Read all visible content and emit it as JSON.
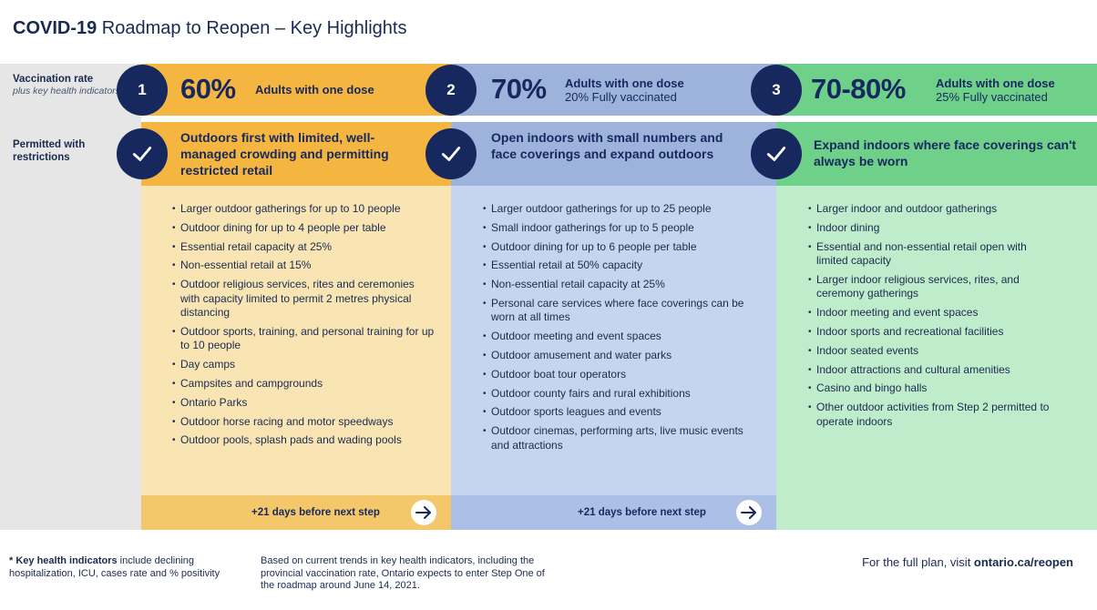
{
  "title": {
    "bold": "COVID-19",
    "rest": " Roadmap to Reopen – Key Highlights"
  },
  "rows": {
    "vaccination": {
      "label": "Vaccination rate",
      "sub": "plus key health indicators*"
    },
    "permitted": {
      "label": "Permitted with restrictions"
    }
  },
  "steps": [
    {
      "number": "1",
      "percent": "60%",
      "dose_line1": "Adults with one dose",
      "dose_line2": "",
      "heading": "Outdoors first with limited, well-managed crowding and permitting restricted retail",
      "items": [
        "Larger outdoor gatherings for up to 10 people",
        "Outdoor dining for up to 4 people per table",
        "Essential retail capacity at 25%",
        "Non-essential retail at 15%",
        "Outdoor religious services, rites and ceremonies with capacity limited to permit 2 metres physical distancing",
        "Outdoor sports, training, and personal training for up to 10 people",
        "Day camps",
        "Campsites and campgrounds",
        "Ontario Parks",
        "Outdoor horse racing and motor speedways",
        "Outdoor pools, splash pads and wading pools"
      ],
      "next": "+21 days before next step"
    },
    {
      "number": "2",
      "percent": "70%",
      "dose_line1": "Adults with one dose",
      "dose_line2": "20% Fully vaccinated",
      "heading": "Open indoors with small numbers and face coverings and expand outdoors",
      "items": [
        "Larger outdoor gatherings for up to 25 people",
        "Small indoor gatherings for up to 5 people",
        "Outdoor dining for up to 6 people per table",
        "Essential retail at 50% capacity",
        "Non-essential retail capacity at 25%",
        "Personal care services where face coverings can be worn at all times",
        "Outdoor meeting and event spaces",
        "Outdoor amusement and water parks",
        "Outdoor boat tour operators",
        "Outdoor county fairs and rural exhibitions",
        "Outdoor sports leagues and events",
        "Outdoor cinemas, performing arts, live music events and attractions"
      ],
      "next": "+21 days before next step"
    },
    {
      "number": "3",
      "percent": "70-80%",
      "dose_line1": "Adults with one dose",
      "dose_line2": "25% Fully vaccinated",
      "heading": "Expand indoors where face coverings can't always be worn",
      "items": [
        "Larger indoor and outdoor gatherings",
        "Indoor dining",
        "Essential and non-essential retail open with limited capacity",
        "Larger indoor religious services, rites, and ceremony gatherings",
        "Indoor meeting and event spaces",
        "Indoor sports and recreational facilities",
        "Indoor seated events",
        "Indoor attractions and cultural amenities",
        "Casino and bingo halls",
        "Other outdoor activities from Step 2 permitted to operate indoors"
      ],
      "next": ""
    }
  ],
  "colors": {
    "step1_band": "#f4b640",
    "step1_body": "#f9e5b4",
    "step1_next": "#f4c86a",
    "step2_band": "#9eb3dc",
    "step2_body": "#c6d4ef",
    "step2_next": "#acbfe6",
    "step3_band": "#6fd08a",
    "step3_body": "#bfeccb",
    "navy": "#17285e"
  },
  "footer": {
    "note_bold": "Key health indicators",
    "note_rest": " include declining hospitalization, ICU, cases rate and % positivity",
    "note_star": "*",
    "middle": "Based on current trends in key health indicators, including the provincial vaccination rate, Ontario expects to enter Step One of the roadmap around June 14, 2021.",
    "right_prefix": "For the full plan, visit ",
    "right_link": "ontario.ca/reopen"
  }
}
